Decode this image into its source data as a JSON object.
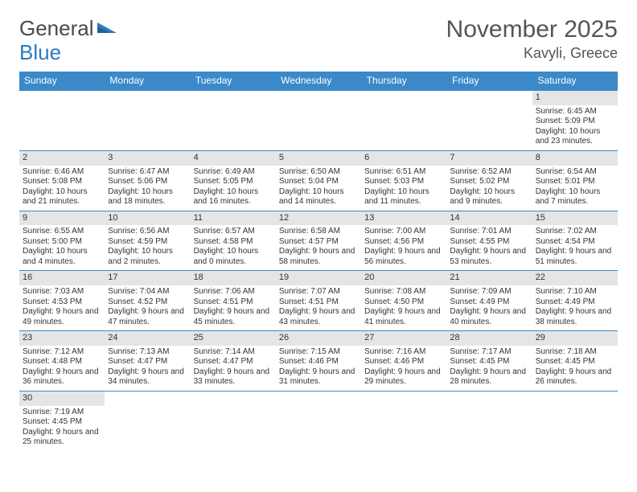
{
  "logo": {
    "text1": "General",
    "text2": "Blue"
  },
  "title": "November 2025",
  "location": "Kavyli, Greece",
  "colors": {
    "header_bg": "#3b89c9",
    "header_text": "#ffffff",
    "daynum_bg": "#e5e5e5",
    "border": "#3b89c9",
    "logo_gray": "#4a4a4a",
    "logo_blue": "#2b7bbf"
  },
  "weekdays": [
    "Sunday",
    "Monday",
    "Tuesday",
    "Wednesday",
    "Thursday",
    "Friday",
    "Saturday"
  ],
  "weeks": [
    [
      {
        "n": "",
        "sr": "",
        "ss": "",
        "dl": ""
      },
      {
        "n": "",
        "sr": "",
        "ss": "",
        "dl": ""
      },
      {
        "n": "",
        "sr": "",
        "ss": "",
        "dl": ""
      },
      {
        "n": "",
        "sr": "",
        "ss": "",
        "dl": ""
      },
      {
        "n": "",
        "sr": "",
        "ss": "",
        "dl": ""
      },
      {
        "n": "",
        "sr": "",
        "ss": "",
        "dl": ""
      },
      {
        "n": "1",
        "sr": "Sunrise: 6:45 AM",
        "ss": "Sunset: 5:09 PM",
        "dl": "Daylight: 10 hours and 23 minutes."
      }
    ],
    [
      {
        "n": "2",
        "sr": "Sunrise: 6:46 AM",
        "ss": "Sunset: 5:08 PM",
        "dl": "Daylight: 10 hours and 21 minutes."
      },
      {
        "n": "3",
        "sr": "Sunrise: 6:47 AM",
        "ss": "Sunset: 5:06 PM",
        "dl": "Daylight: 10 hours and 18 minutes."
      },
      {
        "n": "4",
        "sr": "Sunrise: 6:49 AM",
        "ss": "Sunset: 5:05 PM",
        "dl": "Daylight: 10 hours and 16 minutes."
      },
      {
        "n": "5",
        "sr": "Sunrise: 6:50 AM",
        "ss": "Sunset: 5:04 PM",
        "dl": "Daylight: 10 hours and 14 minutes."
      },
      {
        "n": "6",
        "sr": "Sunrise: 6:51 AM",
        "ss": "Sunset: 5:03 PM",
        "dl": "Daylight: 10 hours and 11 minutes."
      },
      {
        "n": "7",
        "sr": "Sunrise: 6:52 AM",
        "ss": "Sunset: 5:02 PM",
        "dl": "Daylight: 10 hours and 9 minutes."
      },
      {
        "n": "8",
        "sr": "Sunrise: 6:54 AM",
        "ss": "Sunset: 5:01 PM",
        "dl": "Daylight: 10 hours and 7 minutes."
      }
    ],
    [
      {
        "n": "9",
        "sr": "Sunrise: 6:55 AM",
        "ss": "Sunset: 5:00 PM",
        "dl": "Daylight: 10 hours and 4 minutes."
      },
      {
        "n": "10",
        "sr": "Sunrise: 6:56 AM",
        "ss": "Sunset: 4:59 PM",
        "dl": "Daylight: 10 hours and 2 minutes."
      },
      {
        "n": "11",
        "sr": "Sunrise: 6:57 AM",
        "ss": "Sunset: 4:58 PM",
        "dl": "Daylight: 10 hours and 0 minutes."
      },
      {
        "n": "12",
        "sr": "Sunrise: 6:58 AM",
        "ss": "Sunset: 4:57 PM",
        "dl": "Daylight: 9 hours and 58 minutes."
      },
      {
        "n": "13",
        "sr": "Sunrise: 7:00 AM",
        "ss": "Sunset: 4:56 PM",
        "dl": "Daylight: 9 hours and 56 minutes."
      },
      {
        "n": "14",
        "sr": "Sunrise: 7:01 AM",
        "ss": "Sunset: 4:55 PM",
        "dl": "Daylight: 9 hours and 53 minutes."
      },
      {
        "n": "15",
        "sr": "Sunrise: 7:02 AM",
        "ss": "Sunset: 4:54 PM",
        "dl": "Daylight: 9 hours and 51 minutes."
      }
    ],
    [
      {
        "n": "16",
        "sr": "Sunrise: 7:03 AM",
        "ss": "Sunset: 4:53 PM",
        "dl": "Daylight: 9 hours and 49 minutes."
      },
      {
        "n": "17",
        "sr": "Sunrise: 7:04 AM",
        "ss": "Sunset: 4:52 PM",
        "dl": "Daylight: 9 hours and 47 minutes."
      },
      {
        "n": "18",
        "sr": "Sunrise: 7:06 AM",
        "ss": "Sunset: 4:51 PM",
        "dl": "Daylight: 9 hours and 45 minutes."
      },
      {
        "n": "19",
        "sr": "Sunrise: 7:07 AM",
        "ss": "Sunset: 4:51 PM",
        "dl": "Daylight: 9 hours and 43 minutes."
      },
      {
        "n": "20",
        "sr": "Sunrise: 7:08 AM",
        "ss": "Sunset: 4:50 PM",
        "dl": "Daylight: 9 hours and 41 minutes."
      },
      {
        "n": "21",
        "sr": "Sunrise: 7:09 AM",
        "ss": "Sunset: 4:49 PM",
        "dl": "Daylight: 9 hours and 40 minutes."
      },
      {
        "n": "22",
        "sr": "Sunrise: 7:10 AM",
        "ss": "Sunset: 4:49 PM",
        "dl": "Daylight: 9 hours and 38 minutes."
      }
    ],
    [
      {
        "n": "23",
        "sr": "Sunrise: 7:12 AM",
        "ss": "Sunset: 4:48 PM",
        "dl": "Daylight: 9 hours and 36 minutes."
      },
      {
        "n": "24",
        "sr": "Sunrise: 7:13 AM",
        "ss": "Sunset: 4:47 PM",
        "dl": "Daylight: 9 hours and 34 minutes."
      },
      {
        "n": "25",
        "sr": "Sunrise: 7:14 AM",
        "ss": "Sunset: 4:47 PM",
        "dl": "Daylight: 9 hours and 33 minutes."
      },
      {
        "n": "26",
        "sr": "Sunrise: 7:15 AM",
        "ss": "Sunset: 4:46 PM",
        "dl": "Daylight: 9 hours and 31 minutes."
      },
      {
        "n": "27",
        "sr": "Sunrise: 7:16 AM",
        "ss": "Sunset: 4:46 PM",
        "dl": "Daylight: 9 hours and 29 minutes."
      },
      {
        "n": "28",
        "sr": "Sunrise: 7:17 AM",
        "ss": "Sunset: 4:45 PM",
        "dl": "Daylight: 9 hours and 28 minutes."
      },
      {
        "n": "29",
        "sr": "Sunrise: 7:18 AM",
        "ss": "Sunset: 4:45 PM",
        "dl": "Daylight: 9 hours and 26 minutes."
      }
    ],
    [
      {
        "n": "30",
        "sr": "Sunrise: 7:19 AM",
        "ss": "Sunset: 4:45 PM",
        "dl": "Daylight: 9 hours and 25 minutes."
      },
      {
        "n": "",
        "sr": "",
        "ss": "",
        "dl": ""
      },
      {
        "n": "",
        "sr": "",
        "ss": "",
        "dl": ""
      },
      {
        "n": "",
        "sr": "",
        "ss": "",
        "dl": ""
      },
      {
        "n": "",
        "sr": "",
        "ss": "",
        "dl": ""
      },
      {
        "n": "",
        "sr": "",
        "ss": "",
        "dl": ""
      },
      {
        "n": "",
        "sr": "",
        "ss": "",
        "dl": ""
      }
    ]
  ]
}
